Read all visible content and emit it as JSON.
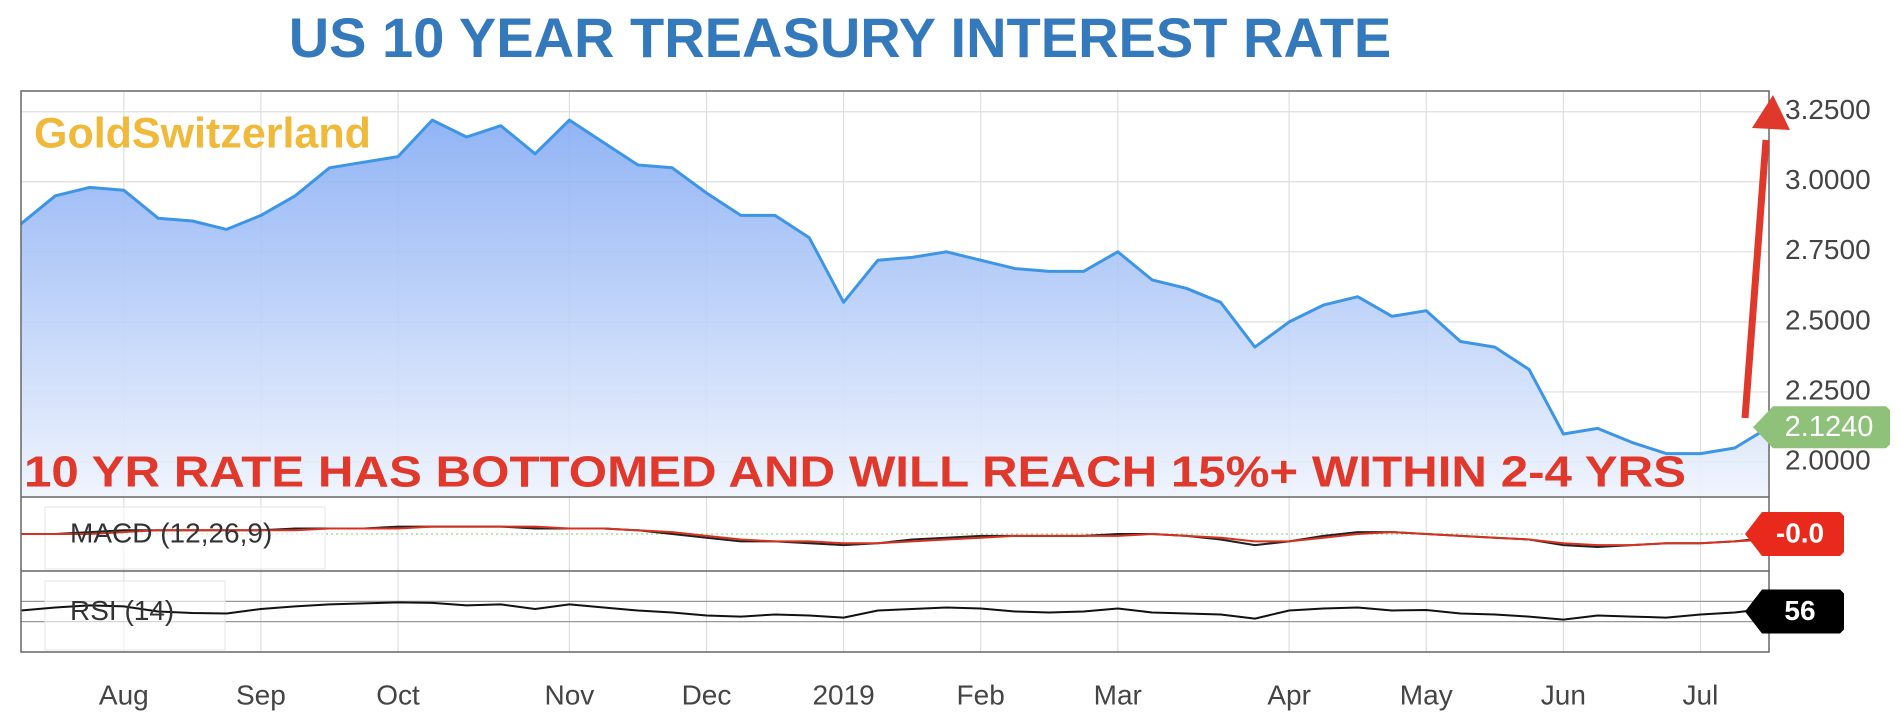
{
  "chart_data": [
    {
      "type": "line",
      "title": "US 10 YEAR TREASURY INTEREST RATE",
      "watermark": "GoldSwitzerland",
      "annotation": "10 YR RATE HAS BOTTOMED AND WILL REACH 15%+ WITHIN 2-4 YRS",
      "categories": [
        null,
        null,
        null,
        "Aug",
        null,
        null,
        null,
        "Sep",
        null,
        null,
        null,
        "Oct",
        null,
        null,
        null,
        null,
        "Nov",
        null,
        null,
        null,
        "Dec",
        null,
        null,
        null,
        "2019",
        null,
        null,
        null,
        "Feb",
        null,
        null,
        null,
        "Mar",
        null,
        null,
        null,
        null,
        "Apr",
        null,
        null,
        null,
        "May",
        null,
        null,
        null,
        "Jun",
        null,
        null,
        null,
        "Jul",
        null,
        null
      ],
      "values": [
        2.85,
        2.95,
        2.98,
        2.97,
        2.87,
        2.86,
        2.83,
        2.88,
        2.95,
        3.05,
        3.07,
        3.09,
        3.22,
        3.16,
        3.2,
        3.1,
        3.22,
        3.14,
        3.06,
        3.05,
        2.96,
        2.88,
        2.88,
        2.8,
        2.57,
        2.72,
        2.73,
        2.75,
        2.72,
        2.69,
        2.68,
        2.68,
        2.75,
        2.65,
        2.62,
        2.57,
        2.41,
        2.5,
        2.56,
        2.59,
        2.52,
        2.54,
        2.43,
        2.41,
        2.33,
        2.1,
        2.12,
        2.07,
        2.03,
        2.03,
        2.05,
        2.124
      ],
      "color": "#3d95e6",
      "end_label": "2.1240",
      "ylim": [
        1.875,
        3.324
      ],
      "yticks": [
        {
          "value": 2,
          "label": "2.0000"
        },
        {
          "value": 2.25,
          "label": "2.2500"
        },
        {
          "value": 2.5,
          "label": "2.5000"
        },
        {
          "value": 2.75,
          "label": "2.7500"
        },
        {
          "value": 3,
          "label": "3.0000"
        },
        {
          "value": 3.25,
          "label": "3.2500"
        }
      ],
      "grid": true
    },
    {
      "type": "line",
      "title": "MACD (12,26,9)",
      "series": [
        {
          "color": "#222222",
          "values": [
            0,
            0,
            0.01,
            0.02,
            0.02,
            0.02,
            0.02,
            0.02,
            0.03,
            0.03,
            0.03,
            0.04,
            0.04,
            0.04,
            0.04,
            0.03,
            0.03,
            0.03,
            0.02,
            0,
            -0.02,
            -0.04,
            -0.04,
            -0.05,
            -0.06,
            -0.05,
            -0.03,
            -0.02,
            -0.01,
            -0.01,
            -0.01,
            -0.01,
            0,
            0,
            -0.01,
            -0.03,
            -0.06,
            -0.04,
            -0.01,
            0.01,
            0.01,
            0,
            -0.01,
            -0.02,
            -0.03,
            -0.06,
            -0.07,
            -0.06,
            -0.05,
            -0.05,
            -0.04,
            -0.02
          ]
        },
        {
          "color": "#d63222",
          "values": [
            0,
            0,
            0,
            0.01,
            0.02,
            0.02,
            0.02,
            0.02,
            0.02,
            0.03,
            0.03,
            0.03,
            0.04,
            0.04,
            0.04,
            0.04,
            0.03,
            0.03,
            0.02,
            0.01,
            -0.01,
            -0.03,
            -0.04,
            -0.04,
            -0.05,
            -0.05,
            -0.04,
            -0.03,
            -0.02,
            -0.01,
            -0.01,
            -0.01,
            -0.01,
            0,
            -0.01,
            -0.02,
            -0.04,
            -0.04,
            -0.02,
            0,
            0.01,
            0,
            -0.01,
            -0.02,
            -0.03,
            -0.05,
            -0.06,
            -0.06,
            -0.05,
            -0.05,
            -0.04,
            -0.03
          ]
        }
      ],
      "end_label": "-0.0",
      "end_color": "#e8291c",
      "ylim": [
        -0.2,
        0.2
      ]
    },
    {
      "type": "line",
      "title": "RSI (14)",
      "values": [
        52,
        58,
        62,
        60,
        50,
        47,
        46,
        55,
        60,
        64,
        66,
        68,
        67,
        62,
        64,
        55,
        64,
        58,
        52,
        48,
        42,
        40,
        44,
        42,
        38,
        52,
        55,
        58,
        56,
        50,
        48,
        50,
        56,
        48,
        46,
        44,
        36,
        52,
        56,
        58,
        52,
        53,
        46,
        44,
        40,
        34,
        42,
        40,
        38,
        44,
        48,
        56
      ],
      "color": "#111111",
      "end_label": "56",
      "end_color": "#000000",
      "ylim": [
        -30,
        130
      ],
      "levels": [
        30,
        70
      ]
    }
  ]
}
